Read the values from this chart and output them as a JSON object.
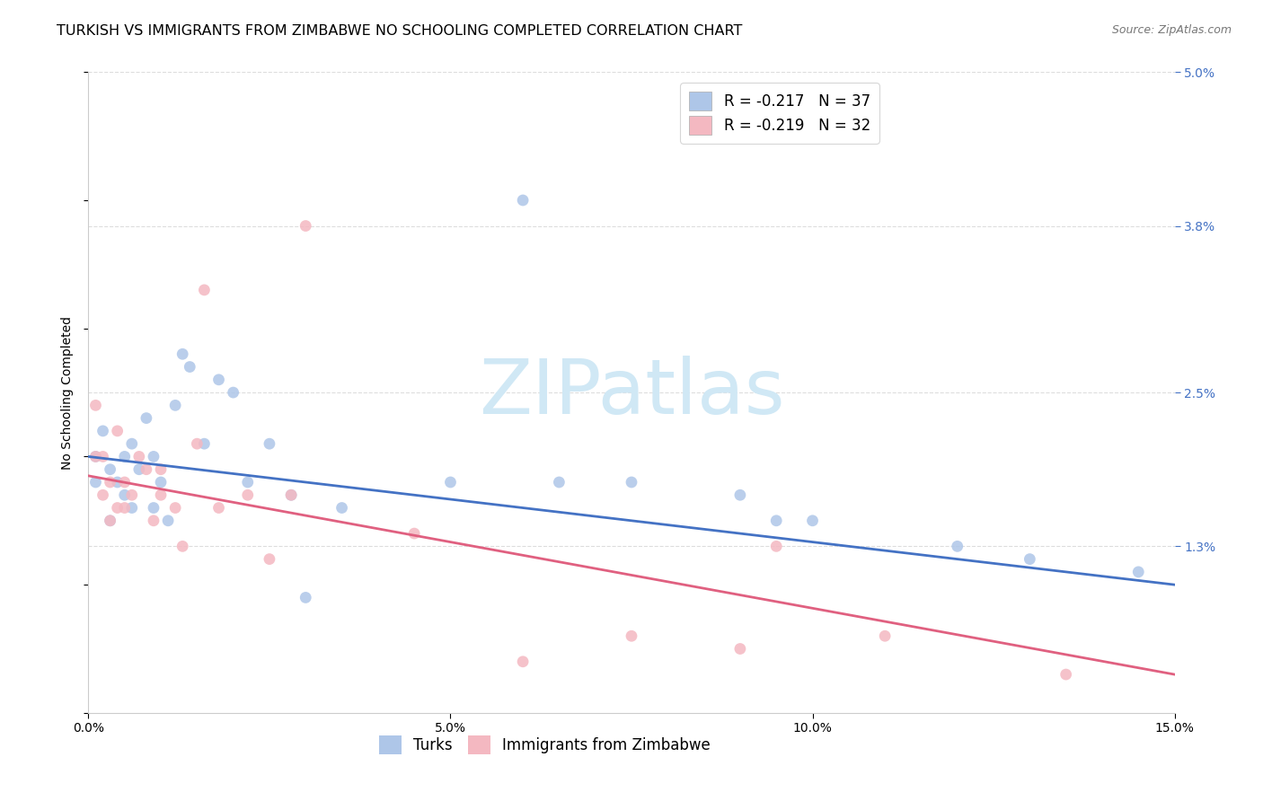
{
  "title": "TURKISH VS IMMIGRANTS FROM ZIMBABWE NO SCHOOLING COMPLETED CORRELATION CHART",
  "source": "Source: ZipAtlas.com",
  "ylabel": "No Schooling Completed",
  "xlim": [
    0.0,
    0.15
  ],
  "ylim": [
    0.0,
    0.05
  ],
  "xticks": [
    0.0,
    0.05,
    0.1,
    0.15
  ],
  "yticks_right": [
    0.013,
    0.025,
    0.038,
    0.05
  ],
  "watermark_text": "ZIPatlas",
  "legend1_label1": "R = -0.217   N = 37",
  "legend1_label2": "R = -0.219   N = 32",
  "legend2_label1": "Turks",
  "legend2_label2": "Immigrants from Zimbabwe",
  "turks_x": [
    0.001,
    0.001,
    0.002,
    0.003,
    0.003,
    0.004,
    0.005,
    0.005,
    0.006,
    0.006,
    0.007,
    0.008,
    0.009,
    0.009,
    0.01,
    0.011,
    0.012,
    0.013,
    0.014,
    0.016,
    0.018,
    0.02,
    0.022,
    0.025,
    0.028,
    0.03,
    0.035,
    0.05,
    0.06,
    0.065,
    0.075,
    0.09,
    0.095,
    0.1,
    0.12,
    0.13,
    0.145
  ],
  "turks_y": [
    0.02,
    0.018,
    0.022,
    0.019,
    0.015,
    0.018,
    0.017,
    0.02,
    0.016,
    0.021,
    0.019,
    0.023,
    0.016,
    0.02,
    0.018,
    0.015,
    0.024,
    0.028,
    0.027,
    0.021,
    0.026,
    0.025,
    0.018,
    0.021,
    0.017,
    0.009,
    0.016,
    0.018,
    0.04,
    0.018,
    0.018,
    0.017,
    0.015,
    0.015,
    0.013,
    0.012,
    0.011
  ],
  "zimbabwe_x": [
    0.001,
    0.001,
    0.002,
    0.002,
    0.003,
    0.003,
    0.004,
    0.004,
    0.005,
    0.005,
    0.006,
    0.007,
    0.008,
    0.009,
    0.01,
    0.01,
    0.012,
    0.013,
    0.015,
    0.016,
    0.018,
    0.022,
    0.025,
    0.028,
    0.03,
    0.045,
    0.06,
    0.075,
    0.09,
    0.095,
    0.11,
    0.135
  ],
  "zimbabwe_y": [
    0.024,
    0.02,
    0.02,
    0.017,
    0.018,
    0.015,
    0.022,
    0.016,
    0.016,
    0.018,
    0.017,
    0.02,
    0.019,
    0.015,
    0.019,
    0.017,
    0.016,
    0.013,
    0.021,
    0.033,
    0.016,
    0.017,
    0.012,
    0.017,
    0.038,
    0.014,
    0.004,
    0.006,
    0.005,
    0.013,
    0.006,
    0.003
  ],
  "turks_color": "#aec6e8",
  "turks_line_color": "#4472c4",
  "zimbabwe_color": "#f4b8c1",
  "zimbabwe_line_color": "#e06080",
  "grid_color": "#dddddd",
  "bg_color": "#ffffff",
  "right_tick_color": "#4472c4",
  "watermark_color": "#d0e8f5",
  "title_fontsize": 11.5,
  "source_fontsize": 9,
  "tick_fontsize": 10,
  "legend_fontsize": 12,
  "watermark_fontsize": 62,
  "marker_size": 85
}
